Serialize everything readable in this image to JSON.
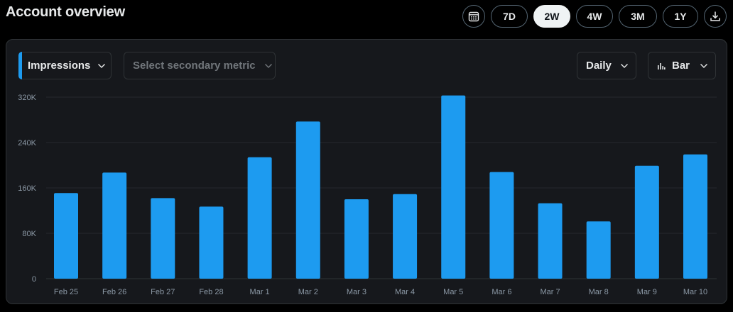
{
  "header": {
    "title": "Account overview"
  },
  "range": {
    "options": [
      "7D",
      "2W",
      "4W",
      "3M",
      "1Y"
    ],
    "selected": "2W"
  },
  "icons": {
    "calendar": "calendar-icon",
    "download": "download-icon",
    "chevron": "chevron-down-icon",
    "bar_chart": "bar-chart-icon"
  },
  "controls": {
    "primary_metric": "Impressions",
    "secondary_placeholder": "Select secondary metric",
    "interval": "Daily",
    "chart_type": "Bar"
  },
  "colors": {
    "accent": "#1d9bf0",
    "bar": "#1d9bf0",
    "card_bg": "#16181c",
    "page_bg": "#000000"
  },
  "chart_data": {
    "type": "bar",
    "categories": [
      "Feb 25",
      "Feb 26",
      "Feb 27",
      "Feb 28",
      "Mar 1",
      "Mar 2",
      "Mar 3",
      "Mar 4",
      "Mar 5",
      "Mar 6",
      "Mar 7",
      "Mar 8",
      "Mar 9",
      "Mar 10"
    ],
    "series": [
      {
        "values": [
          151000,
          187000,
          142000,
          127000,
          214000,
          277000,
          140000,
          149000,
          323000,
          188000,
          133000,
          101000,
          199000,
          219000
        ]
      }
    ],
    "ylim": [
      0,
      320000
    ],
    "yticks": [
      0,
      80000,
      160000,
      240000,
      320000
    ],
    "ytick_labels": [
      "0",
      "80K",
      "160K",
      "240K",
      "320K"
    ],
    "grid": true,
    "title": "",
    "xlabel": "",
    "ylabel": ""
  }
}
